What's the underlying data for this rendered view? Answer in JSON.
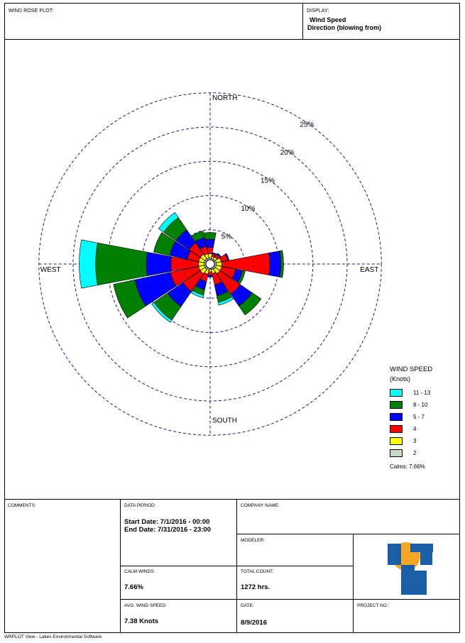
{
  "header": {
    "plot_label": "WIND ROSE PLOT:",
    "display_label": "DISPLAY:",
    "display_line1": "Wind Speed",
    "display_line2": "Direction (blowing from)"
  },
  "chart_data": {
    "type": "wind-rose",
    "units": "Knots",
    "direction_labels": {
      "north": "NORTH",
      "south": "SOUTH",
      "east": "EAST",
      "west": "WEST"
    },
    "rings": [
      5,
      10,
      15,
      20,
      25
    ],
    "ring_labels": [
      "5%",
      "10%",
      "15%",
      "20%",
      "25%"
    ],
    "speed_bins": [
      {
        "label": "2",
        "color": "#c8d8c8"
      },
      {
        "label": "3",
        "color": "#ffff00"
      },
      {
        "label": "4",
        "color": "#ff0000"
      },
      {
        "label": "5 - 7",
        "color": "#0000ff"
      },
      {
        "label": "8 - 10",
        "color": "#008000"
      },
      {
        "label": "11 - 13",
        "color": "#00ffff"
      }
    ],
    "directions": [
      "N",
      "NNE",
      "NE",
      "ENE",
      "E",
      "ESE",
      "SE",
      "SSE",
      "S",
      "SSW",
      "SW",
      "WSW",
      "W",
      "WNW",
      "NW",
      "NNW"
    ],
    "frequencies": [
      [
        0.3,
        0.6,
        0.9,
        1.2,
        1.0,
        0.0
      ],
      [
        0.2,
        0.3,
        0.4,
        0.2,
        0.0,
        0.0
      ],
      [
        0.2,
        0.4,
        0.5,
        0.2,
        0.0,
        0.0
      ],
      [
        0.3,
        0.7,
        1.0,
        0.2,
        0.0,
        0.0
      ],
      [
        0.3,
        0.8,
        7.0,
        1.6,
        0.4,
        0.0
      ],
      [
        0.3,
        0.8,
        2.1,
        1.0,
        0.4,
        0.0
      ],
      [
        0.3,
        0.8,
        3.6,
        2.1,
        1.6,
        0.0
      ],
      [
        0.2,
        0.6,
        1.7,
        1.6,
        1.0,
        0.4
      ],
      [
        0.2,
        0.3,
        0.5,
        0.3,
        0.0,
        0.0
      ],
      [
        0.3,
        0.6,
        1.1,
        1.2,
        0.8,
        0.4
      ],
      [
        0.3,
        0.8,
        3.1,
        2.7,
        2.4,
        0.4
      ],
      [
        0.3,
        0.8,
        4.2,
        5.3,
        3.2,
        0.0
      ],
      [
        0.3,
        0.8,
        4.0,
        3.6,
        7.4,
        2.4
      ],
      [
        0.3,
        0.8,
        1.7,
        2.6,
        2.4,
        0.0
      ],
      [
        0.3,
        0.8,
        2.0,
        2.3,
        2.2,
        0.9
      ],
      [
        0.3,
        0.6,
        1.1,
        1.3,
        1.0,
        0.0
      ]
    ]
  },
  "legend": {
    "title_line1": "WIND SPEED",
    "title_line2": "(Knots)",
    "items": [
      {
        "label": "11 - 13",
        "color": "#00ffff"
      },
      {
        "label": "8 - 10",
        "color": "#008000"
      },
      {
        "label": "5 - 7",
        "color": "#0000ff"
      },
      {
        "label": "4",
        "color": "#ff0000"
      },
      {
        "label": "3",
        "color": "#ffff00"
      },
      {
        "label": "2",
        "color": "#c8d8c8"
      }
    ],
    "calms": "Calms: 7.66%"
  },
  "table": {
    "comments_label": "COMMENTS:",
    "data_period_label": "DATA PERIOD:",
    "start_date": "Start Date: 7/1/2016 - 00:00",
    "end_date": "End Date: 7/31/2016 - 23:00",
    "company_label": "COMPANY NAME:",
    "modeler_label": "MODELER:",
    "calm_label": "CALM WINDS:",
    "calm_value": "7.66%",
    "total_label": "TOTAL COUNT:",
    "total_value": "1272 hrs.",
    "avg_label": "AVG. WIND SPEED:",
    "avg_value": "7.38 Knots",
    "date_label": "DATE:",
    "date_value": "8/9/2016",
    "project_label": "PROJECT NO.:",
    "logo_colors": {
      "blue": "#1a5ea6",
      "orange": "#f5a623"
    }
  },
  "footer": {
    "text": "WRPLOT View - Lakes Environmental Software"
  }
}
